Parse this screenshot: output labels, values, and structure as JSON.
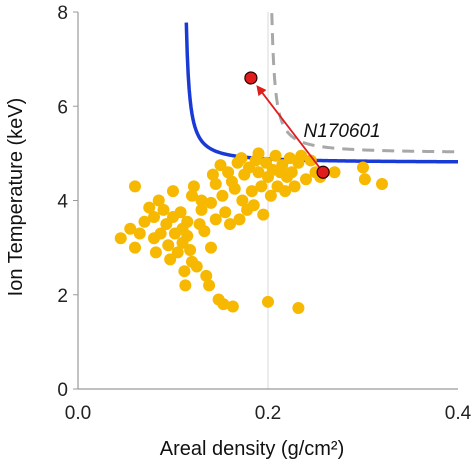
{
  "chart_data": {
    "type": "scatter",
    "xlabel": "Areal density (g/cm²)",
    "ylabel": "Ion Temperature (keV)",
    "xlim": [
      0.0,
      0.4
    ],
    "ylim": [
      0,
      8
    ],
    "xticks": [
      "0.0",
      "0.2",
      "0.4"
    ],
    "yticks": [
      "0",
      "2",
      "4",
      "6",
      "8"
    ],
    "xtick_values": [
      0.0,
      0.2,
      0.4
    ],
    "ytick_values": [
      0,
      2,
      4,
      6,
      8
    ],
    "grid": "vertical at x=0.2",
    "colors": {
      "points": "#F6B800",
      "solid_curve": "#1a3ad6",
      "dashed_curve": "#a8a8a8",
      "highlight": "#e01c1c",
      "arrow": "#e01c1c"
    },
    "points": [
      {
        "x": 0.045,
        "y": 3.2
      },
      {
        "x": 0.055,
        "y": 3.4
      },
      {
        "x": 0.06,
        "y": 4.3
      },
      {
        "x": 0.06,
        "y": 3.0
      },
      {
        "x": 0.065,
        "y": 3.3
      },
      {
        "x": 0.07,
        "y": 3.55
      },
      {
        "x": 0.075,
        "y": 3.85
      },
      {
        "x": 0.08,
        "y": 3.65
      },
      {
        "x": 0.08,
        "y": 3.2
      },
      {
        "x": 0.082,
        "y": 2.9
      },
      {
        "x": 0.085,
        "y": 4.0
      },
      {
        "x": 0.087,
        "y": 3.3
      },
      {
        "x": 0.09,
        "y": 3.8
      },
      {
        "x": 0.093,
        "y": 3.5
      },
      {
        "x": 0.095,
        "y": 3.05
      },
      {
        "x": 0.097,
        "y": 2.75
      },
      {
        "x": 0.1,
        "y": 3.65
      },
      {
        "x": 0.1,
        "y": 4.2
      },
      {
        "x": 0.102,
        "y": 3.3
      },
      {
        "x": 0.105,
        "y": 2.9
      },
      {
        "x": 0.108,
        "y": 3.75
      },
      {
        "x": 0.11,
        "y": 3.4
      },
      {
        "x": 0.11,
        "y": 3.1
      },
      {
        "x": 0.112,
        "y": 2.5
      },
      {
        "x": 0.113,
        "y": 2.2
      },
      {
        "x": 0.115,
        "y": 3.25
      },
      {
        "x": 0.115,
        "y": 3.55
      },
      {
        "x": 0.118,
        "y": 2.95
      },
      {
        "x": 0.12,
        "y": 4.1
      },
      {
        "x": 0.12,
        "y": 2.7
      },
      {
        "x": 0.122,
        "y": 4.3
      },
      {
        "x": 0.125,
        "y": 2.6
      },
      {
        "x": 0.128,
        "y": 3.5
      },
      {
        "x": 0.13,
        "y": 3.8
      },
      {
        "x": 0.13,
        "y": 4.0
      },
      {
        "x": 0.133,
        "y": 3.35
      },
      {
        "x": 0.135,
        "y": 2.4
      },
      {
        "x": 0.138,
        "y": 2.2
      },
      {
        "x": 0.14,
        "y": 3.0
      },
      {
        "x": 0.14,
        "y": 3.95
      },
      {
        "x": 0.142,
        "y": 4.55
      },
      {
        "x": 0.145,
        "y": 4.35
      },
      {
        "x": 0.145,
        "y": 3.6
      },
      {
        "x": 0.148,
        "y": 1.9
      },
      {
        "x": 0.15,
        "y": 4.75
      },
      {
        "x": 0.152,
        "y": 4.1
      },
      {
        "x": 0.153,
        "y": 1.8
      },
      {
        "x": 0.155,
        "y": 3.75
      },
      {
        "x": 0.158,
        "y": 4.6
      },
      {
        "x": 0.16,
        "y": 3.5
      },
      {
        "x": 0.162,
        "y": 4.4
      },
      {
        "x": 0.163,
        "y": 1.75
      },
      {
        "x": 0.165,
        "y": 4.25
      },
      {
        "x": 0.168,
        "y": 4.8
      },
      {
        "x": 0.17,
        "y": 3.6
      },
      {
        "x": 0.172,
        "y": 4.9
      },
      {
        "x": 0.173,
        "y": 4.0
      },
      {
        "x": 0.175,
        "y": 4.55
      },
      {
        "x": 0.178,
        "y": 3.8
      },
      {
        "x": 0.18,
        "y": 4.7
      },
      {
        "x": 0.183,
        "y": 4.2
      },
      {
        "x": 0.185,
        "y": 3.9
      },
      {
        "x": 0.187,
        "y": 4.85
      },
      {
        "x": 0.19,
        "y": 4.6
      },
      {
        "x": 0.19,
        "y": 5.0
      },
      {
        "x": 0.193,
        "y": 4.3
      },
      {
        "x": 0.195,
        "y": 3.7
      },
      {
        "x": 0.198,
        "y": 4.8
      },
      {
        "x": 0.2,
        "y": 4.5
      },
      {
        "x": 0.2,
        "y": 1.85
      },
      {
        "x": 0.203,
        "y": 4.1
      },
      {
        "x": 0.205,
        "y": 4.65
      },
      {
        "x": 0.208,
        "y": 4.95
      },
      {
        "x": 0.21,
        "y": 4.3
      },
      {
        "x": 0.213,
        "y": 4.6
      },
      {
        "x": 0.215,
        "y": 4.75
      },
      {
        "x": 0.218,
        "y": 4.2
      },
      {
        "x": 0.22,
        "y": 4.5
      },
      {
        "x": 0.223,
        "y": 4.9
      },
      {
        "x": 0.225,
        "y": 4.6
      },
      {
        "x": 0.228,
        "y": 4.3
      },
      {
        "x": 0.232,
        "y": 4.8
      },
      {
        "x": 0.232,
        "y": 1.72
      },
      {
        "x": 0.235,
        "y": 4.95
      },
      {
        "x": 0.24,
        "y": 4.45
      },
      {
        "x": 0.245,
        "y": 4.85
      },
      {
        "x": 0.25,
        "y": 4.6
      },
      {
        "x": 0.255,
        "y": 4.5
      },
      {
        "x": 0.27,
        "y": 4.6
      },
      {
        "x": 0.3,
        "y": 4.7
      },
      {
        "x": 0.302,
        "y": 4.45
      },
      {
        "x": 0.32,
        "y": 4.35
      }
    ],
    "highlight_points": [
      {
        "x": 0.258,
        "y": 4.6
      },
      {
        "x": 0.182,
        "y": 6.6
      }
    ],
    "arrow": {
      "from": {
        "x": 0.258,
        "y": 4.6
      },
      "to": {
        "x": 0.182,
        "y": 6.6
      }
    },
    "annotation": {
      "text": "N170601",
      "x": 0.25,
      "y": 5.5
    },
    "curves": [
      {
        "style": "solid",
        "asymptote_x": 0.11,
        "tail_y": 4.8
      },
      {
        "style": "dashed",
        "asymptote_x": 0.2,
        "tail_y": 5.0
      }
    ]
  }
}
